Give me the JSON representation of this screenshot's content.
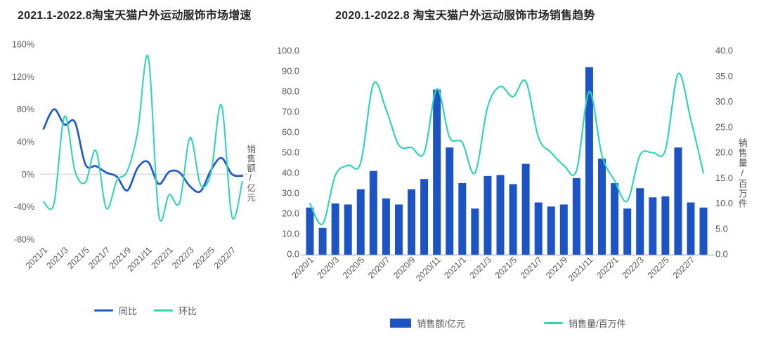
{
  "page": {
    "background": "#ffffff",
    "text_color": "#595959",
    "title_color": "#262626",
    "grid_color": "#d9d9d9"
  },
  "left_chart": {
    "title": "2021.1-2022.8淘宝天猫户外运动服饰市场增速",
    "right_axis_label": "销售额/亿元",
    "legend": [
      {
        "label": "同比",
        "color": "#1E5AC8",
        "swatch": "line"
      },
      {
        "label": "环比",
        "color": "#30D5B8",
        "swatch": "line"
      }
    ]
  },
  "right_chart": {
    "title": "2020.1-2022.8 淘宝天猫户外运动服饰市场销售趋势",
    "right_axis_label": "销售量/百万件",
    "legend": [
      {
        "label": "销售额/亿元",
        "color": "#1C54C6",
        "swatch": "rect"
      },
      {
        "label": "销售量/百万件",
        "color": "#30D5B8",
        "swatch": "line"
      }
    ]
  },
  "chart_data": [
    {
      "type": "line",
      "title": "2021.1-2022.8淘宝天猫户外运动服饰市场增速",
      "categories": [
        "2021/1",
        "2021/2",
        "2021/3",
        "2021/4",
        "2021/5",
        "2021/6",
        "2021/7",
        "2021/8",
        "2021/9",
        "2021/10",
        "2021/11",
        "2021/12",
        "2022/1",
        "2022/2",
        "2022/3",
        "2022/4",
        "2022/5",
        "2022/6",
        "2022/7",
        "2022/8"
      ],
      "x_tick_every": 2,
      "ylim": [
        -80,
        160
      ],
      "y_tick_labels": [
        "160%",
        "120%",
        "80%",
        "40%",
        "0%",
        "-40%",
        "-80%"
      ],
      "grid": "single horizontal line at 0%",
      "legend_position": "bottom",
      "series": [
        {
          "name": "同比",
          "color": "#1E5AC8",
          "values": [
            56,
            80,
            61,
            64,
            12,
            10,
            2,
            -3,
            -20,
            8,
            15,
            -12,
            3,
            2,
            -15,
            -21,
            5,
            20,
            0,
            -2
          ]
        },
        {
          "name": "环比",
          "color": "#30D5B8",
          "values": [
            -34,
            -36,
            71,
            4,
            -10,
            29,
            -42,
            -8,
            4,
            53,
            144,
            -49,
            -25,
            -35,
            45,
            -13,
            2,
            85,
            -52,
            -9
          ]
        }
      ]
    },
    {
      "type": "bar+line",
      "title": "2020.1-2022.8 淘宝天猫户外运动服饰市场销售趋势",
      "categories": [
        "2020/1",
        "2020/2",
        "2020/3",
        "2020/4",
        "2020/5",
        "2020/6",
        "2020/7",
        "2020/8",
        "2020/9",
        "2020/10",
        "2020/11",
        "2020/12",
        "2021/1",
        "2021/2",
        "2021/3",
        "2021/4",
        "2021/5",
        "2021/6",
        "2021/7",
        "2021/8",
        "2021/9",
        "2021/10",
        "2021/11",
        "2021/12",
        "2022/1",
        "2022/2",
        "2022/3",
        "2022/4",
        "2022/5",
        "2022/6",
        "2022/7",
        "2022/8"
      ],
      "x_tick_every": 2,
      "left_ylim": [
        0,
        100
      ],
      "right_ylim": [
        0,
        40
      ],
      "left_y_tick_labels": [
        "100.0",
        "90.0",
        "80.0",
        "70.0",
        "60.0",
        "50.0",
        "40.0",
        "30.0",
        "20.0",
        "10.0",
        "0.0"
      ],
      "right_y_tick_labels": [
        "40.0",
        "35.0",
        "30.0",
        "25.0",
        "20.0",
        "15.0",
        "10.0",
        "5.0",
        "0.0"
      ],
      "right_axis_label": "销售量/百万件",
      "grid": "baseline only",
      "legend_position": "bottom",
      "bar_series": {
        "name": "销售额/亿元",
        "axis": "left",
        "color": "#1C54C6",
        "values": [
          23,
          13,
          25,
          24.5,
          32,
          41,
          27.5,
          24.5,
          32,
          37,
          81,
          52.5,
          35,
          22.5,
          38.5,
          39,
          34.5,
          44.5,
          25.5,
          23.5,
          24.5,
          37.5,
          92,
          47,
          35,
          22.5,
          32.5,
          28,
          28.5,
          52.5,
          25.5,
          23
        ]
      },
      "line_series": {
        "name": "销售量/百万件",
        "axis": "right",
        "color": "#30D5B8",
        "values": [
          10,
          6,
          15.5,
          17.5,
          18,
          33.5,
          28.5,
          21.5,
          21,
          20,
          32.5,
          23,
          22,
          16,
          29,
          33,
          31,
          34,
          23,
          20,
          17.5,
          16.5,
          32,
          19.5,
          14.5,
          10.5,
          19.5,
          20,
          20.5,
          35.5,
          26.5,
          16
        ]
      }
    }
  ]
}
